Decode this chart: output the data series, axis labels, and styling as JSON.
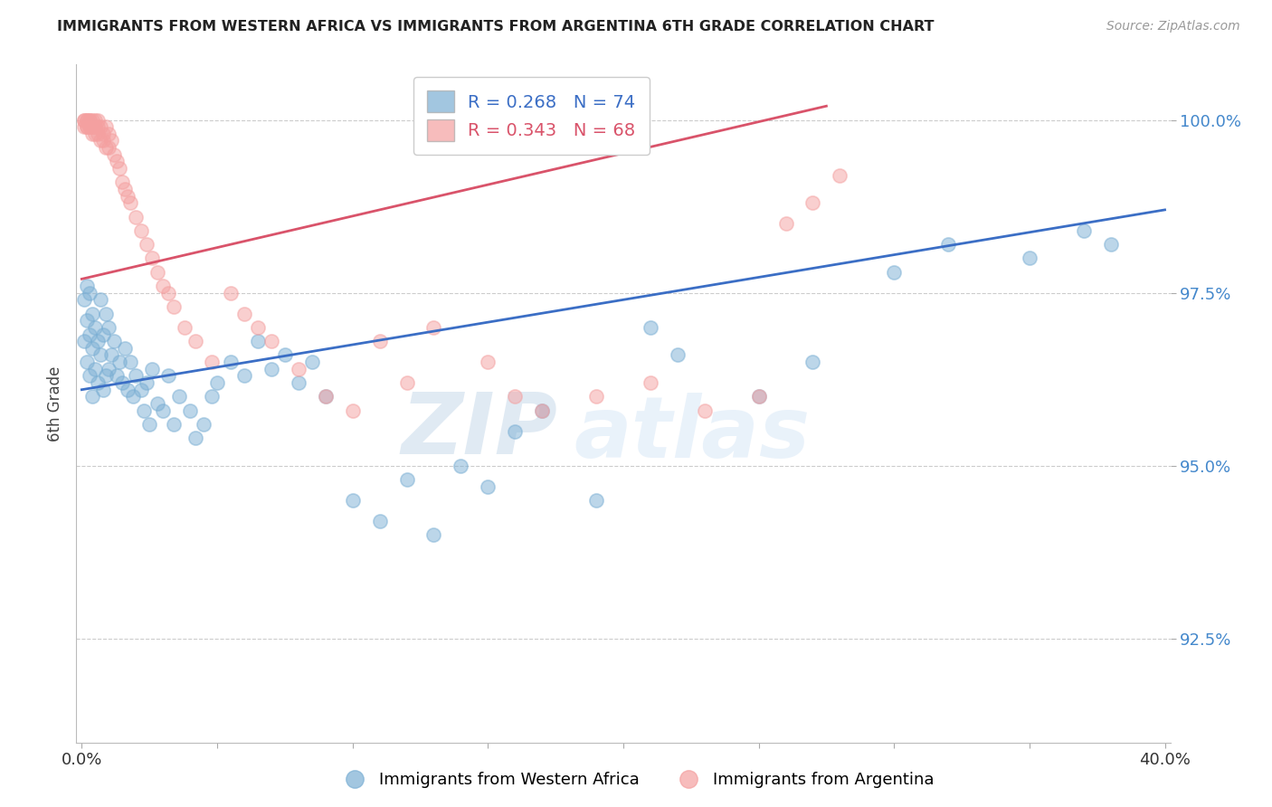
{
  "title": "IMMIGRANTS FROM WESTERN AFRICA VS IMMIGRANTS FROM ARGENTINA 6TH GRADE CORRELATION CHART",
  "source": "Source: ZipAtlas.com",
  "xlabel_blue": "Immigrants from Western Africa",
  "xlabel_pink": "Immigrants from Argentina",
  "ylabel": "6th Grade",
  "xlim": [
    -0.002,
    0.402
  ],
  "ylim": [
    0.91,
    1.008
  ],
  "yticks": [
    0.925,
    0.95,
    0.975,
    1.0
  ],
  "ytick_labels": [
    "92.5%",
    "95.0%",
    "97.5%",
    "100.0%"
  ],
  "blue_R": 0.268,
  "blue_N": 74,
  "pink_R": 0.343,
  "pink_N": 68,
  "blue_color": "#7BAFD4",
  "pink_color": "#F4A0A0",
  "trend_blue": "#3B6EC5",
  "trend_pink": "#D9536A",
  "watermark_zip": "ZIP",
  "watermark_atlas": "atlas",
  "blue_x": [
    0.001,
    0.001,
    0.002,
    0.002,
    0.002,
    0.003,
    0.003,
    0.003,
    0.004,
    0.004,
    0.004,
    0.005,
    0.005,
    0.006,
    0.006,
    0.007,
    0.007,
    0.008,
    0.008,
    0.009,
    0.009,
    0.01,
    0.01,
    0.011,
    0.012,
    0.013,
    0.014,
    0.015,
    0.016,
    0.017,
    0.018,
    0.019,
    0.02,
    0.022,
    0.023,
    0.024,
    0.025,
    0.026,
    0.028,
    0.03,
    0.032,
    0.034,
    0.036,
    0.04,
    0.042,
    0.045,
    0.048,
    0.05,
    0.055,
    0.06,
    0.065,
    0.07,
    0.075,
    0.08,
    0.085,
    0.09,
    0.1,
    0.11,
    0.12,
    0.13,
    0.14,
    0.15,
    0.16,
    0.17,
    0.19,
    0.21,
    0.22,
    0.25,
    0.27,
    0.3,
    0.32,
    0.35,
    0.37,
    0.38
  ],
  "blue_y": [
    0.974,
    0.968,
    0.976,
    0.971,
    0.965,
    0.975,
    0.969,
    0.963,
    0.972,
    0.967,
    0.96,
    0.97,
    0.964,
    0.968,
    0.962,
    0.974,
    0.966,
    0.969,
    0.961,
    0.972,
    0.963,
    0.97,
    0.964,
    0.966,
    0.968,
    0.963,
    0.965,
    0.962,
    0.967,
    0.961,
    0.965,
    0.96,
    0.963,
    0.961,
    0.958,
    0.962,
    0.956,
    0.964,
    0.959,
    0.958,
    0.963,
    0.956,
    0.96,
    0.958,
    0.954,
    0.956,
    0.96,
    0.962,
    0.965,
    0.963,
    0.968,
    0.964,
    0.966,
    0.962,
    0.965,
    0.96,
    0.945,
    0.942,
    0.948,
    0.94,
    0.95,
    0.947,
    0.955,
    0.958,
    0.945,
    0.97,
    0.966,
    0.96,
    0.965,
    0.978,
    0.982,
    0.98,
    0.984,
    0.982
  ],
  "pink_x": [
    0.001,
    0.001,
    0.001,
    0.002,
    0.002,
    0.002,
    0.002,
    0.003,
    0.003,
    0.003,
    0.003,
    0.004,
    0.004,
    0.004,
    0.004,
    0.005,
    0.005,
    0.005,
    0.006,
    0.006,
    0.006,
    0.007,
    0.007,
    0.008,
    0.008,
    0.009,
    0.009,
    0.01,
    0.01,
    0.011,
    0.012,
    0.013,
    0.014,
    0.015,
    0.016,
    0.017,
    0.018,
    0.02,
    0.022,
    0.024,
    0.026,
    0.028,
    0.03,
    0.032,
    0.034,
    0.038,
    0.042,
    0.048,
    0.055,
    0.06,
    0.065,
    0.07,
    0.08,
    0.09,
    0.1,
    0.11,
    0.12,
    0.13,
    0.15,
    0.16,
    0.17,
    0.19,
    0.21,
    0.23,
    0.25,
    0.26,
    0.27,
    0.28
  ],
  "pink_y": [
    1.0,
    1.0,
    0.999,
    1.0,
    1.0,
    0.999,
    0.999,
    1.0,
    1.0,
    0.999,
    0.999,
    1.0,
    0.999,
    0.999,
    0.998,
    1.0,
    0.999,
    0.998,
    1.0,
    0.999,
    0.998,
    0.999,
    0.997,
    0.998,
    0.997,
    0.999,
    0.996,
    0.998,
    0.996,
    0.997,
    0.995,
    0.994,
    0.993,
    0.991,
    0.99,
    0.989,
    0.988,
    0.986,
    0.984,
    0.982,
    0.98,
    0.978,
    0.976,
    0.975,
    0.973,
    0.97,
    0.968,
    0.965,
    0.975,
    0.972,
    0.97,
    0.968,
    0.964,
    0.96,
    0.958,
    0.968,
    0.962,
    0.97,
    0.965,
    0.96,
    0.958,
    0.96,
    0.962,
    0.958,
    0.96,
    0.985,
    0.988,
    0.992
  ],
  "blue_trend_x": [
    0.0,
    0.4
  ],
  "blue_trend_y": [
    0.961,
    0.987
  ],
  "pink_trend_x": [
    0.0,
    0.275
  ],
  "pink_trend_y": [
    0.977,
    1.002
  ]
}
